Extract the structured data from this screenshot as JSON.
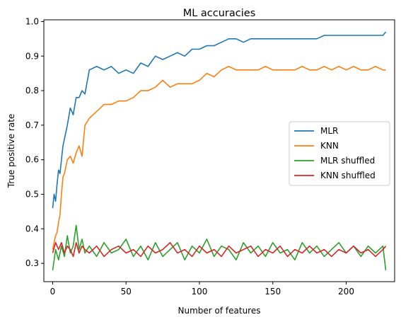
{
  "chart_data": {
    "type": "line",
    "title": "ML accuracies",
    "xlabel": "Number of features",
    "ylabel": "True positive rate",
    "xlim": [
      -6,
      233
    ],
    "ylim": [
      0.247,
      1.005
    ],
    "xticks": [
      0,
      50,
      100,
      150,
      200
    ],
    "yticks": [
      0.3,
      0.4,
      0.5,
      0.6,
      0.7,
      0.8,
      0.9,
      1.0
    ],
    "ytick_labels": [
      "0.3",
      "0.4",
      "0.5",
      "0.6",
      "0.7",
      "0.8",
      "0.9",
      "1.0"
    ],
    "grid": false,
    "legend_position": "center-right",
    "series": [
      {
        "name": "MLR",
        "color": "#1f77b4",
        "x": [
          0,
          1,
          2,
          3,
          4,
          5,
          6,
          7,
          8,
          10,
          12,
          14,
          16,
          18,
          20,
          22,
          25,
          30,
          35,
          40,
          45,
          50,
          55,
          60,
          65,
          70,
          75,
          80,
          85,
          90,
          95,
          100,
          105,
          110,
          115,
          120,
          125,
          130,
          135,
          140,
          145,
          150,
          155,
          160,
          165,
          170,
          175,
          180,
          185,
          190,
          195,
          200,
          205,
          210,
          215,
          220,
          225,
          227
        ],
        "y": [
          0.46,
          0.5,
          0.48,
          0.53,
          0.57,
          0.56,
          0.6,
          0.64,
          0.66,
          0.7,
          0.75,
          0.73,
          0.78,
          0.78,
          0.8,
          0.79,
          0.86,
          0.87,
          0.86,
          0.87,
          0.85,
          0.86,
          0.85,
          0.88,
          0.87,
          0.9,
          0.89,
          0.9,
          0.91,
          0.9,
          0.92,
          0.92,
          0.93,
          0.93,
          0.94,
          0.95,
          0.95,
          0.94,
          0.95,
          0.95,
          0.95,
          0.95,
          0.95,
          0.95,
          0.95,
          0.95,
          0.95,
          0.95,
          0.96,
          0.96,
          0.96,
          0.96,
          0.96,
          0.96,
          0.96,
          0.96,
          0.96,
          0.97
        ]
      },
      {
        "name": "KNN",
        "color": "#ff7f0e",
        "x": [
          0,
          1,
          2,
          3,
          4,
          5,
          6,
          7,
          8,
          10,
          12,
          14,
          16,
          18,
          20,
          22,
          25,
          30,
          35,
          40,
          45,
          50,
          55,
          60,
          65,
          70,
          75,
          80,
          85,
          90,
          95,
          100,
          105,
          110,
          115,
          120,
          125,
          130,
          135,
          140,
          145,
          150,
          155,
          160,
          165,
          170,
          175,
          180,
          185,
          190,
          195,
          200,
          205,
          210,
          215,
          220,
          225,
          227
        ],
        "y": [
          0.34,
          0.36,
          0.38,
          0.39,
          0.42,
          0.44,
          0.5,
          0.55,
          0.56,
          0.6,
          0.61,
          0.59,
          0.62,
          0.64,
          0.61,
          0.7,
          0.72,
          0.74,
          0.76,
          0.76,
          0.77,
          0.77,
          0.78,
          0.8,
          0.8,
          0.81,
          0.83,
          0.81,
          0.82,
          0.82,
          0.82,
          0.83,
          0.85,
          0.84,
          0.86,
          0.87,
          0.86,
          0.86,
          0.86,
          0.86,
          0.87,
          0.86,
          0.86,
          0.86,
          0.86,
          0.87,
          0.86,
          0.86,
          0.87,
          0.86,
          0.87,
          0.86,
          0.87,
          0.86,
          0.86,
          0.87,
          0.86,
          0.86
        ]
      },
      {
        "name": "MLR shuffled",
        "color": "#2ca02c",
        "x": [
          0,
          2,
          4,
          6,
          8,
          10,
          12,
          14,
          16,
          18,
          20,
          22,
          25,
          30,
          35,
          40,
          45,
          50,
          55,
          60,
          65,
          70,
          75,
          80,
          85,
          90,
          95,
          100,
          105,
          110,
          115,
          120,
          125,
          130,
          135,
          140,
          145,
          150,
          155,
          160,
          165,
          170,
          175,
          180,
          185,
          190,
          195,
          200,
          205,
          210,
          215,
          220,
          225,
          227
        ],
        "y": [
          0.28,
          0.34,
          0.31,
          0.35,
          0.32,
          0.38,
          0.33,
          0.35,
          0.41,
          0.34,
          0.37,
          0.33,
          0.35,
          0.32,
          0.36,
          0.33,
          0.34,
          0.37,
          0.32,
          0.35,
          0.31,
          0.36,
          0.32,
          0.34,
          0.36,
          0.31,
          0.35,
          0.33,
          0.37,
          0.32,
          0.35,
          0.34,
          0.31,
          0.36,
          0.33,
          0.35,
          0.32,
          0.36,
          0.33,
          0.34,
          0.31,
          0.36,
          0.33,
          0.35,
          0.32,
          0.34,
          0.36,
          0.33,
          0.35,
          0.32,
          0.35,
          0.33,
          0.35,
          0.28
        ]
      },
      {
        "name": "KNN shuffled",
        "color": "#d62728",
        "x": [
          0,
          2,
          4,
          6,
          8,
          10,
          12,
          14,
          16,
          18,
          20,
          22,
          25,
          30,
          35,
          40,
          45,
          50,
          55,
          60,
          65,
          70,
          75,
          80,
          85,
          90,
          95,
          100,
          105,
          110,
          115,
          120,
          125,
          130,
          135,
          140,
          145,
          150,
          155,
          160,
          165,
          170,
          175,
          180,
          185,
          190,
          195,
          200,
          205,
          210,
          215,
          220,
          225,
          227
        ],
        "y": [
          0.33,
          0.36,
          0.34,
          0.36,
          0.33,
          0.35,
          0.34,
          0.32,
          0.36,
          0.33,
          0.35,
          0.34,
          0.33,
          0.35,
          0.32,
          0.34,
          0.35,
          0.33,
          0.34,
          0.32,
          0.35,
          0.33,
          0.34,
          0.36,
          0.33,
          0.34,
          0.32,
          0.35,
          0.33,
          0.34,
          0.32,
          0.35,
          0.33,
          0.34,
          0.35,
          0.32,
          0.34,
          0.33,
          0.35,
          0.32,
          0.34,
          0.33,
          0.35,
          0.33,
          0.34,
          0.32,
          0.34,
          0.33,
          0.35,
          0.33,
          0.34,
          0.32,
          0.34,
          0.35
        ]
      }
    ]
  }
}
